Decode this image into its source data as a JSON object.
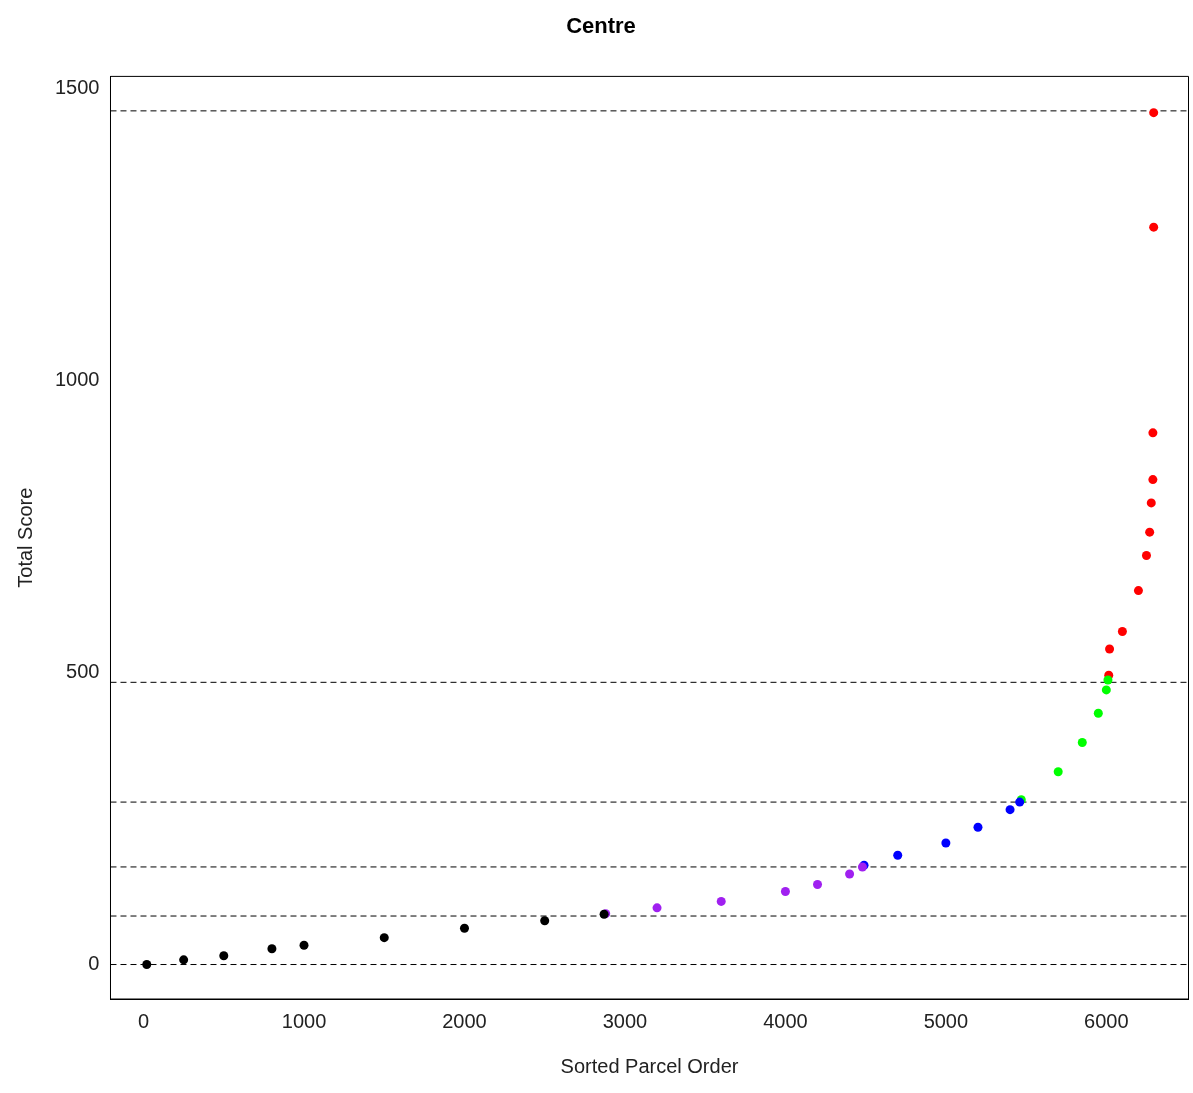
{
  "chart_data": {
    "type": "scatter",
    "title": "Centre",
    "xlabel": "Sorted Parcel Order",
    "ylabel": "Total Score",
    "xlim": [
      -206,
      6512
    ],
    "ylim": [
      -59,
      1520
    ],
    "xticks": [
      0,
      1000,
      2000,
      3000,
      4000,
      5000,
      6000
    ],
    "yticks": [
      0,
      500,
      1000,
      1500
    ],
    "grid": false,
    "legend": false,
    "marker": "circle",
    "series": [
      {
        "color": "#000000",
        "x": [
          20,
          250,
          500,
          800,
          1000,
          1500,
          2000,
          2500,
          2870
        ],
        "values": [
          0,
          8,
          15,
          27,
          33,
          46,
          62,
          75,
          86
        ]
      },
      {
        "color": "#a020f0",
        "x": [
          2880,
          3200,
          3600,
          4000,
          4200,
          4400,
          4480
        ],
        "values": [
          87,
          97,
          108,
          125,
          137,
          155,
          167
        ]
      },
      {
        "color": "#0000ff",
        "x": [
          4490,
          4700,
          5000,
          5200,
          5400,
          5460
        ],
        "values": [
          170,
          187,
          208,
          235,
          265,
          278
        ]
      },
      {
        "color": "#00ff00",
        "x": [
          5470,
          5700,
          5850,
          5950,
          6000,
          6010
        ],
        "values": [
          282,
          330,
          380,
          430,
          470,
          487
        ]
      },
      {
        "color": "#ff0000",
        "x": [
          6015,
          6020,
          6100,
          6200,
          6250,
          6270,
          6280,
          6290,
          6290,
          6295,
          6295
        ],
        "values": [
          495,
          540,
          570,
          640,
          700,
          740,
          790,
          830,
          910,
          1262,
          1458
        ]
      }
    ],
    "ref_lines": [
      {
        "axis": "y",
        "value": 0,
        "color": "#000000",
        "line_style": "dashed"
      },
      {
        "axis": "y",
        "value": 83,
        "color": "#000000",
        "line_style": "dashed"
      },
      {
        "axis": "y",
        "value": 167,
        "color": "#000000",
        "line_style": "dashed"
      },
      {
        "axis": "y",
        "value": 278,
        "color": "#000000",
        "line_style": "dashed"
      },
      {
        "axis": "y",
        "value": 483,
        "color": "#000000",
        "line_style": "dashed"
      },
      {
        "axis": "y",
        "value": 1461,
        "color": "#000000",
        "line_style": "dashed"
      }
    ]
  }
}
